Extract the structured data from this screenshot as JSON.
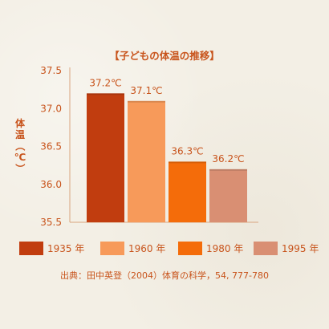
{
  "colors": {
    "text": "#c8541c",
    "axis": "#d9a57f",
    "grid": "#e6d7c6"
  },
  "chart_data": {
    "type": "bar",
    "title": "【子どもの体温の推移】",
    "ylabel": "体温（℃）",
    "xlabel": "",
    "ylim": [
      35.5,
      37.5
    ],
    "yticks": [
      35.5,
      36.0,
      36.5,
      37.0,
      37.5
    ],
    "ytick_labels": [
      "35.5",
      "36.0",
      "36.5",
      "37.0",
      "37.5"
    ],
    "grid": false,
    "categories": [
      "1935 年",
      "1960 年",
      "1980 年",
      "1995 年"
    ],
    "values": [
      37.2,
      37.1,
      36.3,
      36.2
    ],
    "data_labels": [
      "37.2℃",
      "37.1℃",
      "36.3℃",
      "36.2℃"
    ],
    "colors": [
      "#c13d0f",
      "#f79a5a",
      "#f46c0a",
      "#d98f73"
    ],
    "legend_position": "bottom",
    "source": "出典：田中英登（2004）体育の科学，54, 777-780"
  }
}
